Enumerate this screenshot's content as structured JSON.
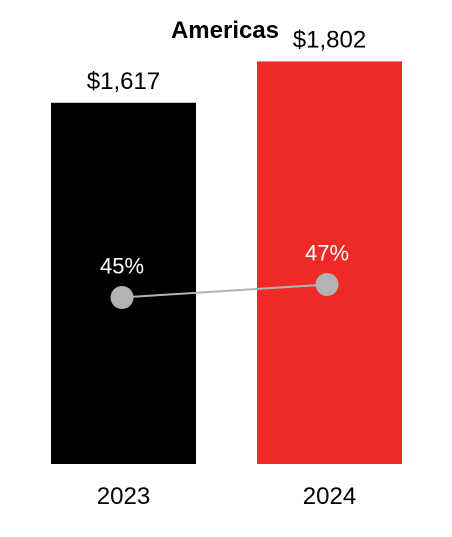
{
  "chart_data": {
    "type": "bar",
    "title": "Americas",
    "categories": [
      "2023",
      "2024"
    ],
    "series": [
      {
        "values": [
          1617,
          1802
        ],
        "value_labels": [
          "$1,617",
          "$1,802"
        ],
        "colors": [
          "#000000",
          "#ee2a27"
        ]
      },
      {
        "type": "line",
        "values": [
          45,
          47
        ],
        "value_labels": [
          "45%",
          "47%"
        ],
        "color": "#b3b3b3"
      }
    ],
    "xlabel": "",
    "ylabel": "",
    "ylim": [
      0,
      2000
    ],
    "line_ylim": [
      0,
      100
    ],
    "grid": false,
    "legend": "none"
  }
}
